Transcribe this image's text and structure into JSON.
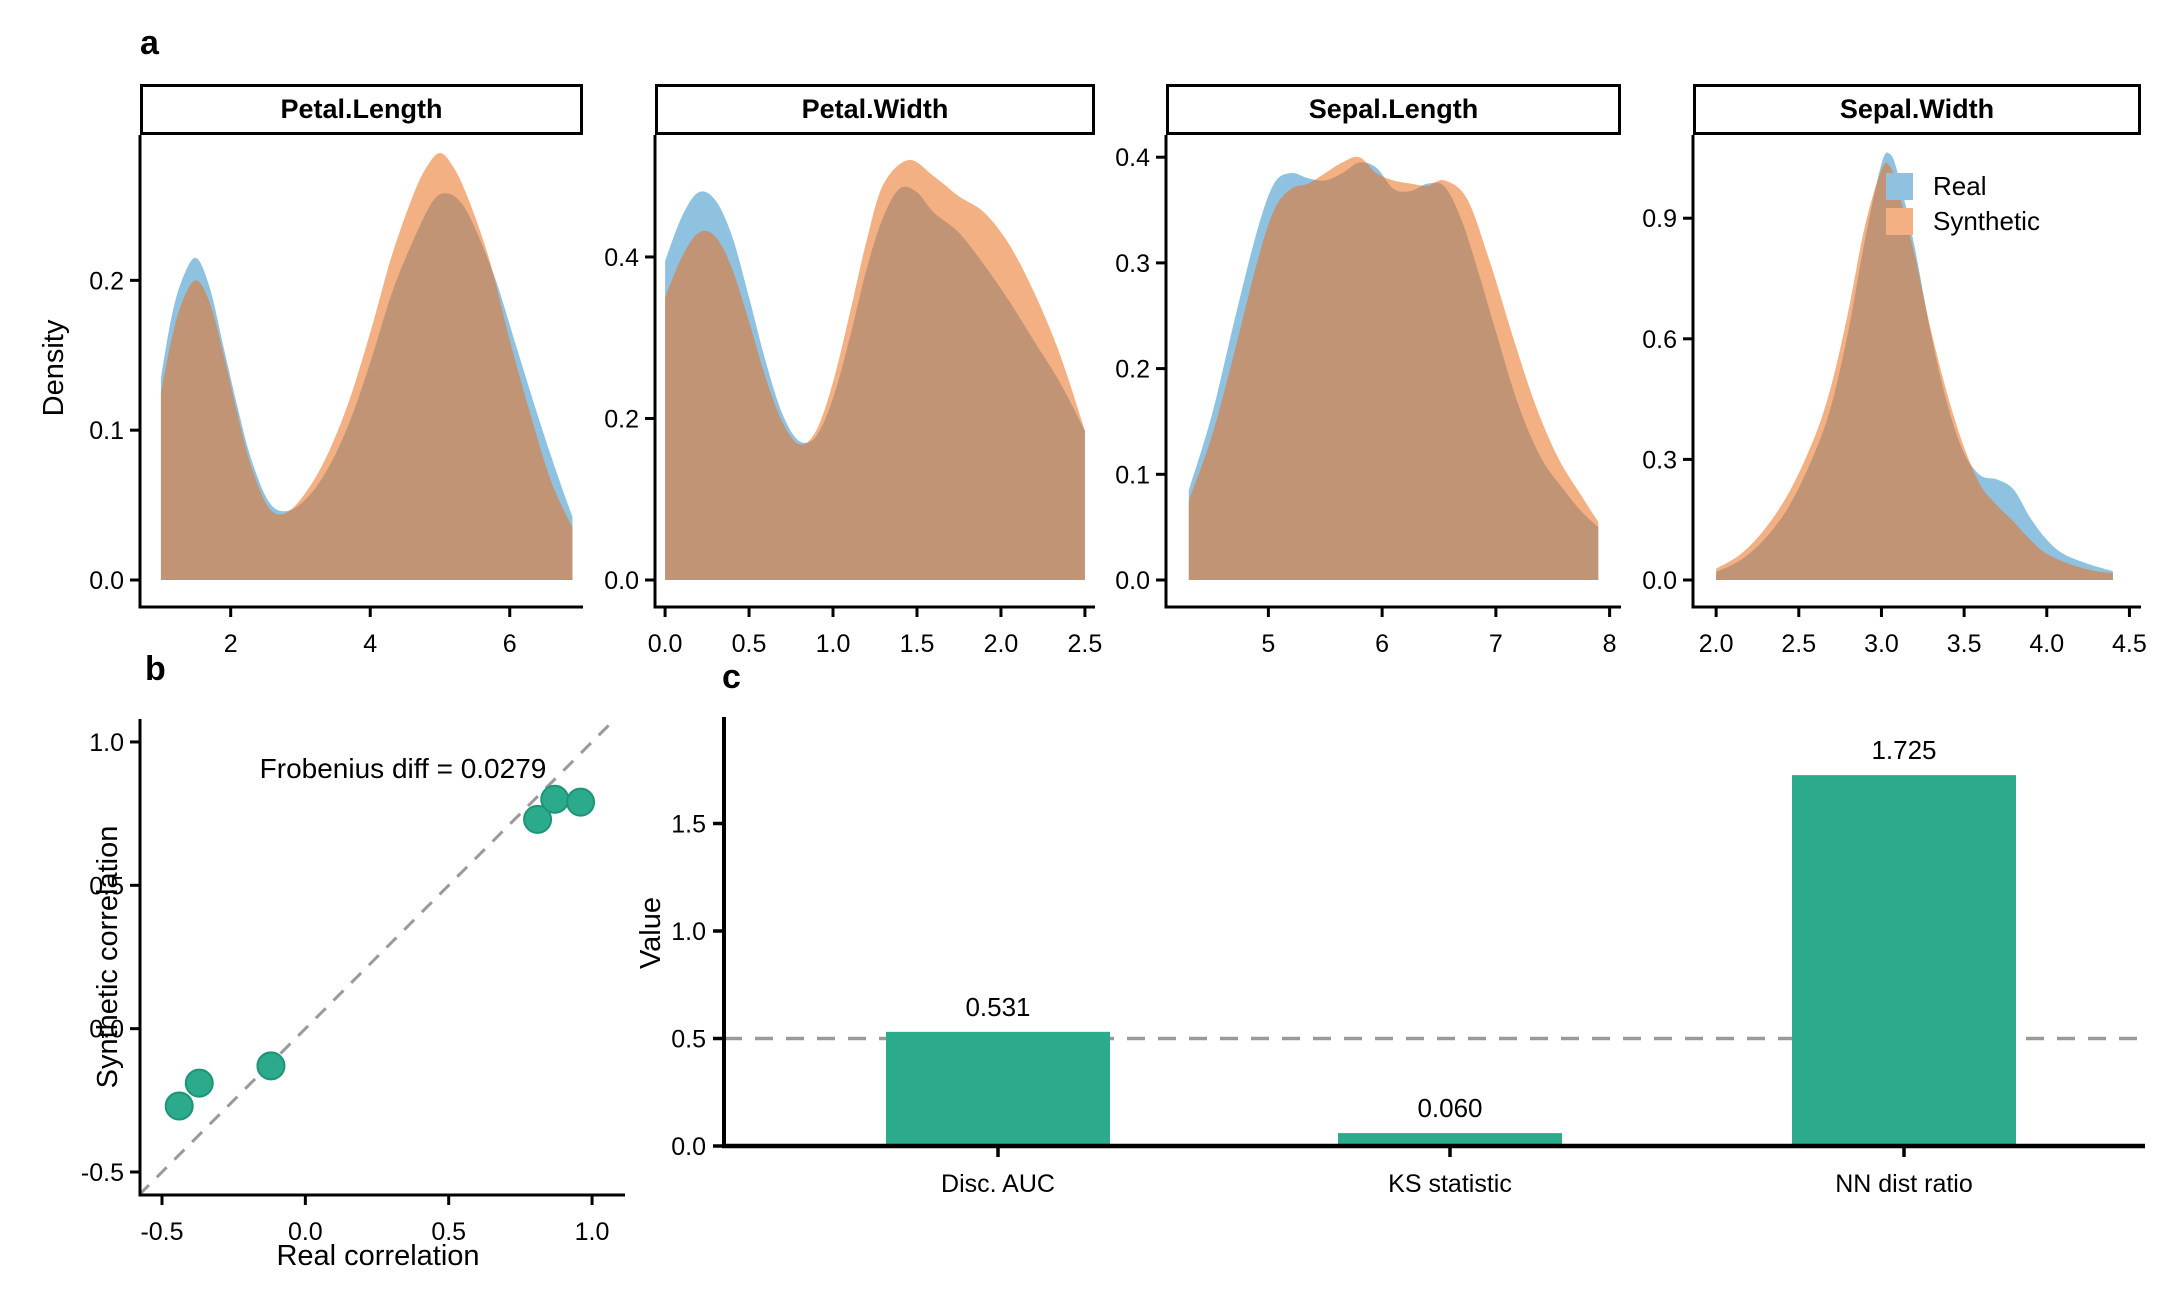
{
  "figure": {
    "background": "#FFFFFF",
    "panel_labels": {
      "a": "a",
      "b": "b",
      "c": "c"
    }
  },
  "colors": {
    "real_fill": "#8FC2E0",
    "synthetic_fill": "#F3B083",
    "real_base": "#3390C7",
    "synthetic_base": "#E96F1D",
    "fill_alpha": 0.55,
    "accent_green": "#2BAB8C",
    "accent_green_edge": "#1D9478",
    "dash_gray": "#9A9A9A",
    "axis_black": "#000000"
  },
  "legend": {
    "items": [
      {
        "label": "Real",
        "color": "#8FC2E0"
      },
      {
        "label": "Synthetic",
        "color": "#F3B083"
      }
    ]
  },
  "chart_data": [
    {
      "type": "area",
      "name": "density-panels",
      "ylabel": "Density",
      "series_names": [
        "Real",
        "Synthetic"
      ],
      "panels": [
        {
          "title": "Petal.Length",
          "xlim": [
            0.7,
            7.05
          ],
          "ylim": [
            0,
            0.297
          ],
          "xticks": [
            {
              "v": 2,
              "label": "2"
            },
            {
              "v": 4,
              "label": "4"
            },
            {
              "v": 6,
              "label": "6"
            }
          ],
          "yticks": [
            {
              "v": 0,
              "label": "0.0"
            },
            {
              "v": 0.1,
              "label": "0.1"
            },
            {
              "v": 0.2,
              "label": "0.2"
            }
          ],
          "real": [
            [
              1.0,
              0.135
            ],
            [
              1.15,
              0.175
            ],
            [
              1.3,
              0.2
            ],
            [
              1.5,
              0.215
            ],
            [
              1.7,
              0.195
            ],
            [
              1.9,
              0.155
            ],
            [
              2.1,
              0.115
            ],
            [
              2.3,
              0.08
            ],
            [
              2.55,
              0.052
            ],
            [
              2.8,
              0.046
            ],
            [
              3.1,
              0.055
            ],
            [
              3.4,
              0.075
            ],
            [
              3.7,
              0.105
            ],
            [
              4.0,
              0.145
            ],
            [
              4.3,
              0.19
            ],
            [
              4.6,
              0.225
            ],
            [
              4.9,
              0.253
            ],
            [
              5.1,
              0.258
            ],
            [
              5.3,
              0.252
            ],
            [
              5.5,
              0.235
            ],
            [
              5.8,
              0.2
            ],
            [
              6.1,
              0.155
            ],
            [
              6.4,
              0.11
            ],
            [
              6.7,
              0.068
            ],
            [
              6.9,
              0.042
            ]
          ],
          "synthetic": [
            [
              1.0,
              0.125
            ],
            [
              1.15,
              0.16
            ],
            [
              1.3,
              0.185
            ],
            [
              1.5,
              0.2
            ],
            [
              1.7,
              0.185
            ],
            [
              1.9,
              0.15
            ],
            [
              2.1,
              0.11
            ],
            [
              2.3,
              0.075
            ],
            [
              2.55,
              0.048
            ],
            [
              2.8,
              0.045
            ],
            [
              3.1,
              0.06
            ],
            [
              3.4,
              0.085
            ],
            [
              3.7,
              0.12
            ],
            [
              4.0,
              0.165
            ],
            [
              4.3,
              0.215
            ],
            [
              4.6,
              0.255
            ],
            [
              4.8,
              0.275
            ],
            [
              5.0,
              0.285
            ],
            [
              5.2,
              0.275
            ],
            [
              5.4,
              0.255
            ],
            [
              5.7,
              0.215
            ],
            [
              6.0,
              0.16
            ],
            [
              6.3,
              0.11
            ],
            [
              6.6,
              0.065
            ],
            [
              6.9,
              0.035
            ]
          ]
        },
        {
          "title": "Petal.Width",
          "xlim": [
            -0.06,
            2.56
          ],
          "ylim": [
            0,
            0.551
          ],
          "xticks": [
            {
              "v": 0,
              "label": "0.0"
            },
            {
              "v": 0.5,
              "label": "0.5"
            },
            {
              "v": 1.0,
              "label": "1.0"
            },
            {
              "v": 1.5,
              "label": "1.5"
            },
            {
              "v": 2.0,
              "label": "2.0"
            },
            {
              "v": 2.5,
              "label": "2.5"
            }
          ],
          "yticks": [
            {
              "v": 0,
              "label": "0.0"
            },
            {
              "v": 0.2,
              "label": "0.2"
            },
            {
              "v": 0.4,
              "label": "0.4"
            }
          ],
          "real": [
            [
              0.0,
              0.395
            ],
            [
              0.1,
              0.45
            ],
            [
              0.2,
              0.48
            ],
            [
              0.3,
              0.47
            ],
            [
              0.4,
              0.425
            ],
            [
              0.5,
              0.35
            ],
            [
              0.6,
              0.27
            ],
            [
              0.7,
              0.205
            ],
            [
              0.8,
              0.172
            ],
            [
              0.9,
              0.178
            ],
            [
              1.0,
              0.225
            ],
            [
              1.1,
              0.3
            ],
            [
              1.2,
              0.385
            ],
            [
              1.3,
              0.45
            ],
            [
              1.4,
              0.485
            ],
            [
              1.5,
              0.48
            ],
            [
              1.6,
              0.455
            ],
            [
              1.75,
              0.43
            ],
            [
              1.9,
              0.39
            ],
            [
              2.05,
              0.345
            ],
            [
              2.2,
              0.295
            ],
            [
              2.35,
              0.245
            ],
            [
              2.5,
              0.185
            ]
          ],
          "synthetic": [
            [
              0.0,
              0.35
            ],
            [
              0.1,
              0.4
            ],
            [
              0.2,
              0.43
            ],
            [
              0.3,
              0.425
            ],
            [
              0.4,
              0.385
            ],
            [
              0.5,
              0.32
            ],
            [
              0.6,
              0.25
            ],
            [
              0.7,
              0.195
            ],
            [
              0.8,
              0.168
            ],
            [
              0.9,
              0.185
            ],
            [
              1.0,
              0.245
            ],
            [
              1.1,
              0.33
            ],
            [
              1.2,
              0.42
            ],
            [
              1.3,
              0.49
            ],
            [
              1.45,
              0.52
            ],
            [
              1.6,
              0.5
            ],
            [
              1.75,
              0.475
            ],
            [
              1.9,
              0.455
            ],
            [
              2.05,
              0.415
            ],
            [
              2.2,
              0.355
            ],
            [
              2.35,
              0.28
            ],
            [
              2.5,
              0.185
            ]
          ]
        },
        {
          "title": "Sepal.Length",
          "xlim": [
            4.1,
            8.1
          ],
          "ylim": [
            0,
            0.421
          ],
          "xticks": [
            {
              "v": 5,
              "label": "5"
            },
            {
              "v": 6,
              "label": "6"
            },
            {
              "v": 7,
              "label": "7"
            },
            {
              "v": 8,
              "label": "8"
            }
          ],
          "yticks": [
            {
              "v": 0,
              "label": "0.0"
            },
            {
              "v": 0.1,
              "label": "0.1"
            },
            {
              "v": 0.2,
              "label": "0.2"
            },
            {
              "v": 0.3,
              "label": "0.3"
            },
            {
              "v": 0.4,
              "label": "0.4"
            }
          ],
          "real": [
            [
              4.3,
              0.085
            ],
            [
              4.5,
              0.155
            ],
            [
              4.7,
              0.245
            ],
            [
              4.9,
              0.33
            ],
            [
              5.05,
              0.375
            ],
            [
              5.2,
              0.385
            ],
            [
              5.35,
              0.38
            ],
            [
              5.5,
              0.378
            ],
            [
              5.65,
              0.385
            ],
            [
              5.8,
              0.395
            ],
            [
              5.95,
              0.39
            ],
            [
              6.1,
              0.37
            ],
            [
              6.25,
              0.368
            ],
            [
              6.4,
              0.375
            ],
            [
              6.55,
              0.372
            ],
            [
              6.7,
              0.34
            ],
            [
              6.85,
              0.29
            ],
            [
              7.0,
              0.235
            ],
            [
              7.2,
              0.165
            ],
            [
              7.4,
              0.115
            ],
            [
              7.6,
              0.085
            ],
            [
              7.75,
              0.065
            ],
            [
              7.9,
              0.05
            ]
          ],
          "synthetic": [
            [
              4.3,
              0.075
            ],
            [
              4.5,
              0.135
            ],
            [
              4.7,
              0.215
            ],
            [
              4.9,
              0.3
            ],
            [
              5.05,
              0.35
            ],
            [
              5.2,
              0.37
            ],
            [
              5.35,
              0.375
            ],
            [
              5.5,
              0.385
            ],
            [
              5.65,
              0.395
            ],
            [
              5.8,
              0.4
            ],
            [
              5.95,
              0.385
            ],
            [
              6.1,
              0.378
            ],
            [
              6.25,
              0.375
            ],
            [
              6.4,
              0.373
            ],
            [
              6.55,
              0.378
            ],
            [
              6.75,
              0.36
            ],
            [
              6.95,
              0.3
            ],
            [
              7.15,
              0.23
            ],
            [
              7.35,
              0.165
            ],
            [
              7.55,
              0.115
            ],
            [
              7.75,
              0.08
            ],
            [
              7.9,
              0.055
            ]
          ]
        },
        {
          "title": "Sepal.Width",
          "xlim": [
            1.86,
            4.57
          ],
          "ylim": [
            0,
            1.107
          ],
          "xticks": [
            {
              "v": 2.0,
              "label": "2.0"
            },
            {
              "v": 2.5,
              "label": "2.5"
            },
            {
              "v": 3.0,
              "label": "3.0"
            },
            {
              "v": 3.5,
              "label": "3.5"
            },
            {
              "v": 4.0,
              "label": "4.0"
            },
            {
              "v": 4.5,
              "label": "4.5"
            }
          ],
          "yticks": [
            {
              "v": 0,
              "label": "0.0"
            },
            {
              "v": 0.3,
              "label": "0.3"
            },
            {
              "v": 0.6,
              "label": "0.6"
            },
            {
              "v": 0.9,
              "label": "0.9"
            }
          ],
          "real": [
            [
              2.0,
              0.02
            ],
            [
              2.15,
              0.05
            ],
            [
              2.3,
              0.105
            ],
            [
              2.45,
              0.19
            ],
            [
              2.6,
              0.32
            ],
            [
              2.7,
              0.44
            ],
            [
              2.8,
              0.62
            ],
            [
              2.9,
              0.845
            ],
            [
              3.0,
              1.035
            ],
            [
              3.05,
              1.06
            ],
            [
              3.1,
              1.01
            ],
            [
              3.2,
              0.83
            ],
            [
              3.3,
              0.61
            ],
            [
              3.4,
              0.435
            ],
            [
              3.5,
              0.315
            ],
            [
              3.6,
              0.26
            ],
            [
              3.7,
              0.25
            ],
            [
              3.8,
              0.225
            ],
            [
              3.9,
              0.155
            ],
            [
              4.0,
              0.1
            ],
            [
              4.1,
              0.065
            ],
            [
              4.25,
              0.04
            ],
            [
              4.4,
              0.022
            ]
          ],
          "synthetic": [
            [
              2.0,
              0.028
            ],
            [
              2.15,
              0.065
            ],
            [
              2.3,
              0.13
            ],
            [
              2.45,
              0.225
            ],
            [
              2.6,
              0.36
            ],
            [
              2.7,
              0.49
            ],
            [
              2.8,
              0.67
            ],
            [
              2.9,
              0.88
            ],
            [
              3.0,
              1.02
            ],
            [
              3.05,
              1.03
            ],
            [
              3.1,
              0.97
            ],
            [
              3.2,
              0.81
            ],
            [
              3.3,
              0.62
            ],
            [
              3.4,
              0.46
            ],
            [
              3.5,
              0.33
            ],
            [
              3.6,
              0.235
            ],
            [
              3.7,
              0.185
            ],
            [
              3.8,
              0.145
            ],
            [
              3.9,
              0.1
            ],
            [
              4.0,
              0.065
            ],
            [
              4.15,
              0.038
            ],
            [
              4.3,
              0.022
            ],
            [
              4.4,
              0.018
            ]
          ]
        }
      ]
    },
    {
      "type": "scatter",
      "name": "correlation-scatter",
      "xlabel": "Real correlation",
      "ylabel": "Synthetic correlation",
      "annotation": "Frobenius diff = 0.0279",
      "xlim": [
        -0.58,
        1.08
      ],
      "ylim": [
        -0.58,
        1.08
      ],
      "xticks": [
        {
          "v": -0.5,
          "label": "-0.5"
        },
        {
          "v": 0,
          "label": "0.0"
        },
        {
          "v": 0.5,
          "label": "0.5"
        },
        {
          "v": 1.0,
          "label": "1.0"
        }
      ],
      "yticks": [
        {
          "v": -0.5,
          "label": "-0.5"
        },
        {
          "v": 0,
          "label": "0.0"
        },
        {
          "v": 0.5,
          "label": "0.5"
        },
        {
          "v": 1.0,
          "label": "1.0"
        }
      ],
      "identity_line": {
        "style": "dashed",
        "from": -0.58,
        "to": 1.12
      },
      "points": [
        [
          -0.44,
          -0.27
        ],
        [
          -0.37,
          -0.19
        ],
        [
          -0.12,
          -0.13
        ],
        [
          0.81,
          0.73
        ],
        [
          0.87,
          0.8
        ],
        [
          0.96,
          0.79
        ]
      ]
    },
    {
      "type": "bar",
      "name": "metrics-bar",
      "ylabel": "Value",
      "categories": [
        "Disc. AUC",
        "KS statistic",
        "NN dist ratio"
      ],
      "values": [
        0.531,
        0.06,
        1.725
      ],
      "value_labels": [
        "0.531",
        "0.060",
        "1.725"
      ],
      "yticks": [
        {
          "v": 0,
          "label": "0.0"
        },
        {
          "v": 0.5,
          "label": "0.5"
        },
        {
          "v": 1.0,
          "label": "1.0"
        },
        {
          "v": 1.5,
          "label": "1.5"
        }
      ],
      "ylim": [
        0,
        1.98
      ],
      "ref_line": {
        "y": 0.5,
        "style": "dashed"
      }
    }
  ]
}
